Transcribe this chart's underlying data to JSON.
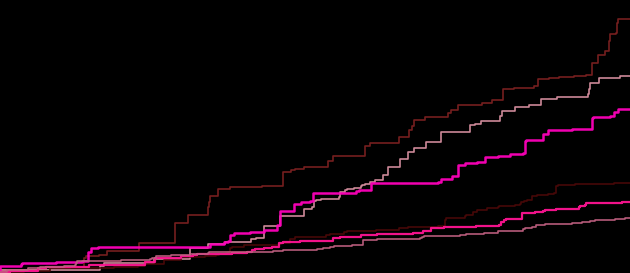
{
  "background_color": "#000000",
  "figure_size": [
    6.3,
    2.73
  ],
  "dpi": 100,
  "lines": [
    {
      "color": "#7B2020",
      "lw": 1.2,
      "start_y": 0.01,
      "end_y": 0.93,
      "n_steps": 60,
      "seed": 42,
      "concavity": 0.35
    },
    {
      "color": "#D890A0",
      "lw": 1.2,
      "start_y": 0.01,
      "end_y": 0.72,
      "n_steps": 55,
      "seed": 7,
      "concavity": 0.3
    },
    {
      "color": "#FF00BB",
      "lw": 1.8,
      "start_y": 0.01,
      "end_y": 0.6,
      "n_steps": 50,
      "seed": 13,
      "concavity": 0.28
    },
    {
      "color": "#4A0808",
      "lw": 1.2,
      "start_y": 0.005,
      "end_y": 0.33,
      "n_steps": 70,
      "seed": 21,
      "concavity": 0.15
    },
    {
      "color": "#FF1493",
      "lw": 1.6,
      "start_y": 0.005,
      "end_y": 0.26,
      "n_steps": 65,
      "seed": 55,
      "concavity": 0.12
    },
    {
      "color": "#C06080",
      "lw": 1.2,
      "start_y": 0.005,
      "end_y": 0.2,
      "n_steps": 68,
      "seed": 99,
      "concavity": 0.1
    }
  ],
  "xlim": [
    0,
    1
  ],
  "ylim": [
    0,
    1
  ]
}
